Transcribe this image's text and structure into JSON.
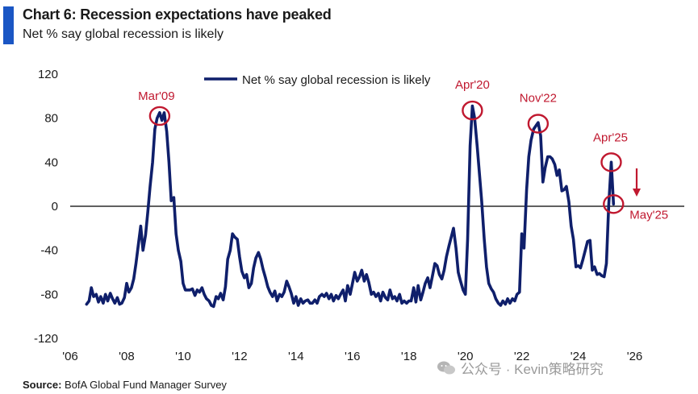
{
  "header": {
    "title": "Chart 6: Recession expectations have peaked",
    "subtitle": "Net % say global recession is likely"
  },
  "source": {
    "label": "Source:",
    "text": "BofA Global Fund Manager Survey"
  },
  "watermark": {
    "text": "公众号 · Kevin策略研究",
    "icon": "wechat-icon"
  },
  "colors": {
    "accent": "#1a56c4",
    "line": "#0f1f6b",
    "annotation": "#c0182f",
    "zero_line": "#000000"
  },
  "chart_data": {
    "type": "line",
    "title": "Chart 6: Recession expectations have peaked",
    "subtitle": "Net % say global recession is likely",
    "xlabel": "",
    "ylabel": "",
    "x_range": [
      2006.0,
      2026.3
    ],
    "ylim": [
      -120,
      120
    ],
    "x_ticks": [
      "'06",
      "'08",
      "'10",
      "'12",
      "'14",
      "'16",
      "'18",
      "'20",
      "'22",
      "'24",
      "'26"
    ],
    "x_tick_values": [
      2006,
      2008,
      2010,
      2012,
      2014,
      2016,
      2018,
      2020,
      2022,
      2024,
      2026
    ],
    "y_ticks": [
      120,
      80,
      40,
      0,
      -40,
      -80,
      -120
    ],
    "grid": false,
    "legend_position": "top",
    "series": [
      {
        "name": "Net % say global recession is likely",
        "points": [
          [
            2006.58,
            -89
          ],
          [
            2006.67,
            -86
          ],
          [
            2006.75,
            -74
          ],
          [
            2006.83,
            -82
          ],
          [
            2006.92,
            -80
          ],
          [
            2007.0,
            -87
          ],
          [
            2007.08,
            -82
          ],
          [
            2007.17,
            -88
          ],
          [
            2007.25,
            -80
          ],
          [
            2007.33,
            -86
          ],
          [
            2007.42,
            -79
          ],
          [
            2007.5,
            -84
          ],
          [
            2007.58,
            -88
          ],
          [
            2007.67,
            -83
          ],
          [
            2007.75,
            -89
          ],
          [
            2007.83,
            -88
          ],
          [
            2007.92,
            -83
          ],
          [
            2008.0,
            -70
          ],
          [
            2008.08,
            -78
          ],
          [
            2008.17,
            -74
          ],
          [
            2008.25,
            -66
          ],
          [
            2008.33,
            -52
          ],
          [
            2008.42,
            -34
          ],
          [
            2008.5,
            -18
          ],
          [
            2008.58,
            -40
          ],
          [
            2008.67,
            -26
          ],
          [
            2008.75,
            -5
          ],
          [
            2008.83,
            18
          ],
          [
            2008.92,
            40
          ],
          [
            2009.0,
            70
          ],
          [
            2009.08,
            80
          ],
          [
            2009.17,
            85
          ],
          [
            2009.25,
            78
          ],
          [
            2009.33,
            85
          ],
          [
            2009.42,
            68
          ],
          [
            2009.5,
            40
          ],
          [
            2009.58,
            5
          ],
          [
            2009.67,
            8
          ],
          [
            2009.75,
            -25
          ],
          [
            2009.83,
            -40
          ],
          [
            2009.92,
            -50
          ],
          [
            2010.0,
            -70
          ],
          [
            2010.08,
            -76
          ],
          [
            2010.17,
            -76
          ],
          [
            2010.25,
            -76
          ],
          [
            2010.33,
            -75
          ],
          [
            2010.42,
            -81
          ],
          [
            2010.5,
            -76
          ],
          [
            2010.58,
            -78
          ],
          [
            2010.67,
            -74
          ],
          [
            2010.75,
            -80
          ],
          [
            2010.83,
            -84
          ],
          [
            2010.92,
            -86
          ],
          [
            2011.0,
            -90
          ],
          [
            2011.08,
            -91
          ],
          [
            2011.17,
            -82
          ],
          [
            2011.25,
            -84
          ],
          [
            2011.33,
            -79
          ],
          [
            2011.42,
            -85
          ],
          [
            2011.5,
            -73
          ],
          [
            2011.58,
            -48
          ],
          [
            2011.67,
            -40
          ],
          [
            2011.75,
            -25
          ],
          [
            2011.83,
            -28
          ],
          [
            2011.92,
            -30
          ],
          [
            2012.0,
            -46
          ],
          [
            2012.08,
            -59
          ],
          [
            2012.17,
            -65
          ],
          [
            2012.25,
            -62
          ],
          [
            2012.33,
            -74
          ],
          [
            2012.42,
            -70
          ],
          [
            2012.5,
            -56
          ],
          [
            2012.58,
            -47
          ],
          [
            2012.67,
            -42
          ],
          [
            2012.75,
            -48
          ],
          [
            2012.83,
            -57
          ],
          [
            2012.92,
            -65
          ],
          [
            2013.0,
            -73
          ],
          [
            2013.08,
            -78
          ],
          [
            2013.17,
            -82
          ],
          [
            2013.25,
            -77
          ],
          [
            2013.33,
            -86
          ],
          [
            2013.42,
            -80
          ],
          [
            2013.5,
            -82
          ],
          [
            2013.58,
            -78
          ],
          [
            2013.67,
            -68
          ],
          [
            2013.75,
            -73
          ],
          [
            2013.83,
            -79
          ],
          [
            2013.92,
            -88
          ],
          [
            2014.0,
            -82
          ],
          [
            2014.08,
            -90
          ],
          [
            2014.17,
            -84
          ],
          [
            2014.25,
            -88
          ],
          [
            2014.33,
            -86
          ],
          [
            2014.42,
            -85
          ],
          [
            2014.5,
            -88
          ],
          [
            2014.58,
            -88
          ],
          [
            2014.67,
            -85
          ],
          [
            2014.75,
            -88
          ],
          [
            2014.83,
            -82
          ],
          [
            2014.92,
            -80
          ],
          [
            2015.0,
            -82
          ],
          [
            2015.08,
            -79
          ],
          [
            2015.17,
            -84
          ],
          [
            2015.25,
            -80
          ],
          [
            2015.33,
            -86
          ],
          [
            2015.42,
            -81
          ],
          [
            2015.5,
            -84
          ],
          [
            2015.58,
            -80
          ],
          [
            2015.67,
            -76
          ],
          [
            2015.75,
            -86
          ],
          [
            2015.83,
            -72
          ],
          [
            2015.92,
            -80
          ],
          [
            2016.0,
            -70
          ],
          [
            2016.08,
            -60
          ],
          [
            2016.17,
            -68
          ],
          [
            2016.25,
            -64
          ],
          [
            2016.33,
            -58
          ],
          [
            2016.42,
            -68
          ],
          [
            2016.5,
            -62
          ],
          [
            2016.58,
            -69
          ],
          [
            2016.67,
            -80
          ],
          [
            2016.75,
            -78
          ],
          [
            2016.83,
            -82
          ],
          [
            2016.92,
            -79
          ],
          [
            2017.0,
            -86
          ],
          [
            2017.08,
            -78
          ],
          [
            2017.17,
            -83
          ],
          [
            2017.25,
            -85
          ],
          [
            2017.33,
            -76
          ],
          [
            2017.42,
            -84
          ],
          [
            2017.5,
            -82
          ],
          [
            2017.58,
            -86
          ],
          [
            2017.67,
            -80
          ],
          [
            2017.75,
            -88
          ],
          [
            2017.83,
            -86
          ],
          [
            2017.92,
            -88
          ],
          [
            2018.0,
            -86
          ],
          [
            2018.08,
            -86
          ],
          [
            2018.17,
            -74
          ],
          [
            2018.25,
            -87
          ],
          [
            2018.33,
            -72
          ],
          [
            2018.42,
            -85
          ],
          [
            2018.5,
            -78
          ],
          [
            2018.58,
            -70
          ],
          [
            2018.67,
            -65
          ],
          [
            2018.75,
            -74
          ],
          [
            2018.83,
            -64
          ],
          [
            2018.92,
            -52
          ],
          [
            2019.0,
            -54
          ],
          [
            2019.08,
            -62
          ],
          [
            2019.17,
            -66
          ],
          [
            2019.25,
            -58
          ],
          [
            2019.33,
            -46
          ],
          [
            2019.42,
            -36
          ],
          [
            2019.5,
            -28
          ],
          [
            2019.58,
            -20
          ],
          [
            2019.67,
            -38
          ],
          [
            2019.75,
            -60
          ],
          [
            2019.83,
            -68
          ],
          [
            2019.92,
            -76
          ],
          [
            2020.0,
            -80
          ],
          [
            2020.08,
            -30
          ],
          [
            2020.17,
            55
          ],
          [
            2020.25,
            91
          ],
          [
            2020.33,
            80
          ],
          [
            2020.42,
            55
          ],
          [
            2020.5,
            30
          ],
          [
            2020.58,
            5
          ],
          [
            2020.67,
            -30
          ],
          [
            2020.75,
            -55
          ],
          [
            2020.83,
            -70
          ],
          [
            2020.92,
            -75
          ],
          [
            2021.0,
            -78
          ],
          [
            2021.08,
            -84
          ],
          [
            2021.17,
            -88
          ],
          [
            2021.25,
            -90
          ],
          [
            2021.33,
            -86
          ],
          [
            2021.42,
            -89
          ],
          [
            2021.5,
            -84
          ],
          [
            2021.58,
            -88
          ],
          [
            2021.67,
            -84
          ],
          [
            2021.75,
            -86
          ],
          [
            2021.83,
            -80
          ],
          [
            2021.92,
            -78
          ],
          [
            2022.0,
            -25
          ],
          [
            2022.08,
            -38
          ],
          [
            2022.17,
            15
          ],
          [
            2022.25,
            45
          ],
          [
            2022.33,
            60
          ],
          [
            2022.42,
            70
          ],
          [
            2022.5,
            73
          ],
          [
            2022.58,
            76
          ],
          [
            2022.67,
            64
          ],
          [
            2022.75,
            22
          ],
          [
            2022.83,
            35
          ],
          [
            2022.92,
            45
          ],
          [
            2023.0,
            45
          ],
          [
            2023.08,
            43
          ],
          [
            2023.17,
            38
          ],
          [
            2023.25,
            28
          ],
          [
            2023.33,
            33
          ],
          [
            2023.42,
            14
          ],
          [
            2023.5,
            15
          ],
          [
            2023.58,
            18
          ],
          [
            2023.67,
            4
          ],
          [
            2023.75,
            -18
          ],
          [
            2023.83,
            -30
          ],
          [
            2023.92,
            -55
          ],
          [
            2024.0,
            -54
          ],
          [
            2024.08,
            -56
          ],
          [
            2024.17,
            -48
          ],
          [
            2024.25,
            -40
          ],
          [
            2024.33,
            -32
          ],
          [
            2024.42,
            -31
          ],
          [
            2024.5,
            -58
          ],
          [
            2024.58,
            -55
          ],
          [
            2024.67,
            -62
          ],
          [
            2024.75,
            -61
          ],
          [
            2024.83,
            -63
          ],
          [
            2024.92,
            -64
          ],
          [
            2025.0,
            -52
          ],
          [
            2025.08,
            0
          ],
          [
            2025.17,
            40
          ],
          [
            2025.25,
            2
          ]
        ]
      }
    ],
    "annotations": [
      {
        "label": "Mar'09",
        "x": 2009.17,
        "y": 82
      },
      {
        "label": "Apr'20",
        "x": 2020.25,
        "y": 87
      },
      {
        "label": "Nov'22",
        "x": 2022.58,
        "y": 75
      },
      {
        "label": "Apr'25",
        "x": 2025.17,
        "y": 40
      },
      {
        "label": "May'25",
        "x": 2025.25,
        "y": 2
      }
    ]
  }
}
